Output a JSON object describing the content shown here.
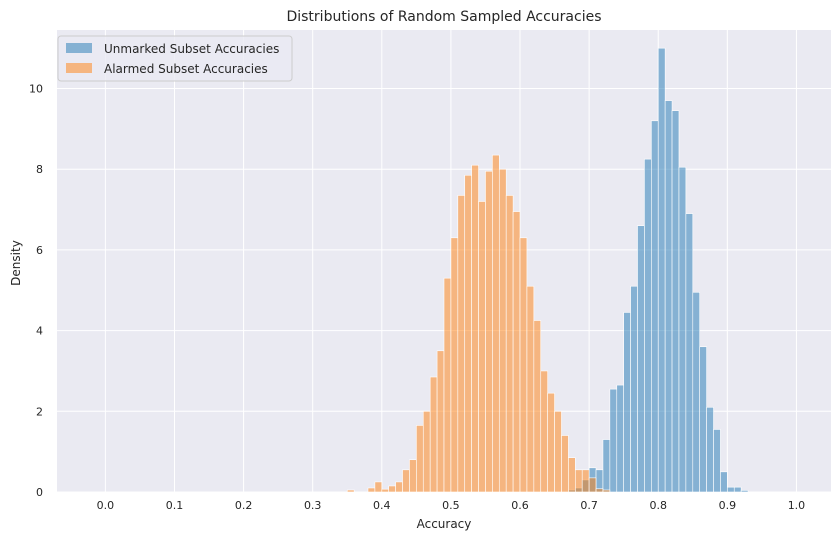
{
  "chart_data": {
    "type": "histogram",
    "title": "Distributions of Random Sampled Accuracies",
    "xlabel": "Accuracy",
    "ylabel": "Density",
    "xlim": [
      -0.07,
      1.05
    ],
    "ylim": [
      0,
      11.45
    ],
    "xticks": [
      "0.0",
      "0.1",
      "0.2",
      "0.3",
      "0.4",
      "0.5",
      "0.6",
      "0.7",
      "0.8",
      "0.9",
      "1.0"
    ],
    "yticks": [
      "0",
      "2",
      "4",
      "6",
      "8",
      "10"
    ],
    "grid": true,
    "legend_position": "top-left",
    "series": [
      {
        "name": "Unmarked Subset Accuracies",
        "color": "#1f77b4",
        "bin_width": 0.01,
        "bin_starts": [
          0.67,
          0.68,
          0.69,
          0.7,
          0.71,
          0.72,
          0.73,
          0.74,
          0.75,
          0.76,
          0.77,
          0.78,
          0.79,
          0.8,
          0.81,
          0.82,
          0.83,
          0.84,
          0.85,
          0.86,
          0.87,
          0.88,
          0.89,
          0.9,
          0.91,
          0.92
        ],
        "values": [
          0.05,
          0.1,
          0.3,
          0.6,
          0.55,
          1.3,
          2.55,
          2.65,
          4.45,
          5.1,
          6.6,
          8.25,
          9.2,
          11.0,
          9.7,
          9.45,
          8.05,
          6.9,
          4.95,
          3.6,
          2.1,
          1.55,
          0.5,
          0.12,
          0.12,
          0.04
        ]
      },
      {
        "name": "Alarmed Subset Accuracies",
        "color": "#ff7f0e",
        "bin_width": 0.01,
        "bin_starts": [
          0.35,
          0.36,
          0.37,
          0.38,
          0.39,
          0.4,
          0.41,
          0.42,
          0.43,
          0.44,
          0.45,
          0.46,
          0.47,
          0.48,
          0.49,
          0.5,
          0.51,
          0.52,
          0.53,
          0.54,
          0.55,
          0.56,
          0.57,
          0.58,
          0.59,
          0.6,
          0.61,
          0.62,
          0.63,
          0.64,
          0.65,
          0.66,
          0.67,
          0.68,
          0.69,
          0.7,
          0.71,
          0.72
        ],
        "values": [
          0.05,
          0.0,
          0.0,
          0.1,
          0.25,
          0.07,
          0.15,
          0.25,
          0.55,
          0.8,
          1.65,
          2.0,
          2.85,
          3.5,
          5.3,
          6.3,
          7.35,
          7.85,
          8.1,
          7.2,
          7.95,
          8.35,
          8.0,
          7.35,
          6.95,
          6.3,
          5.1,
          4.25,
          3.0,
          2.45,
          2.0,
          1.4,
          0.85,
          0.55,
          0.55,
          0.35,
          0.08,
          0.05
        ]
      }
    ]
  }
}
